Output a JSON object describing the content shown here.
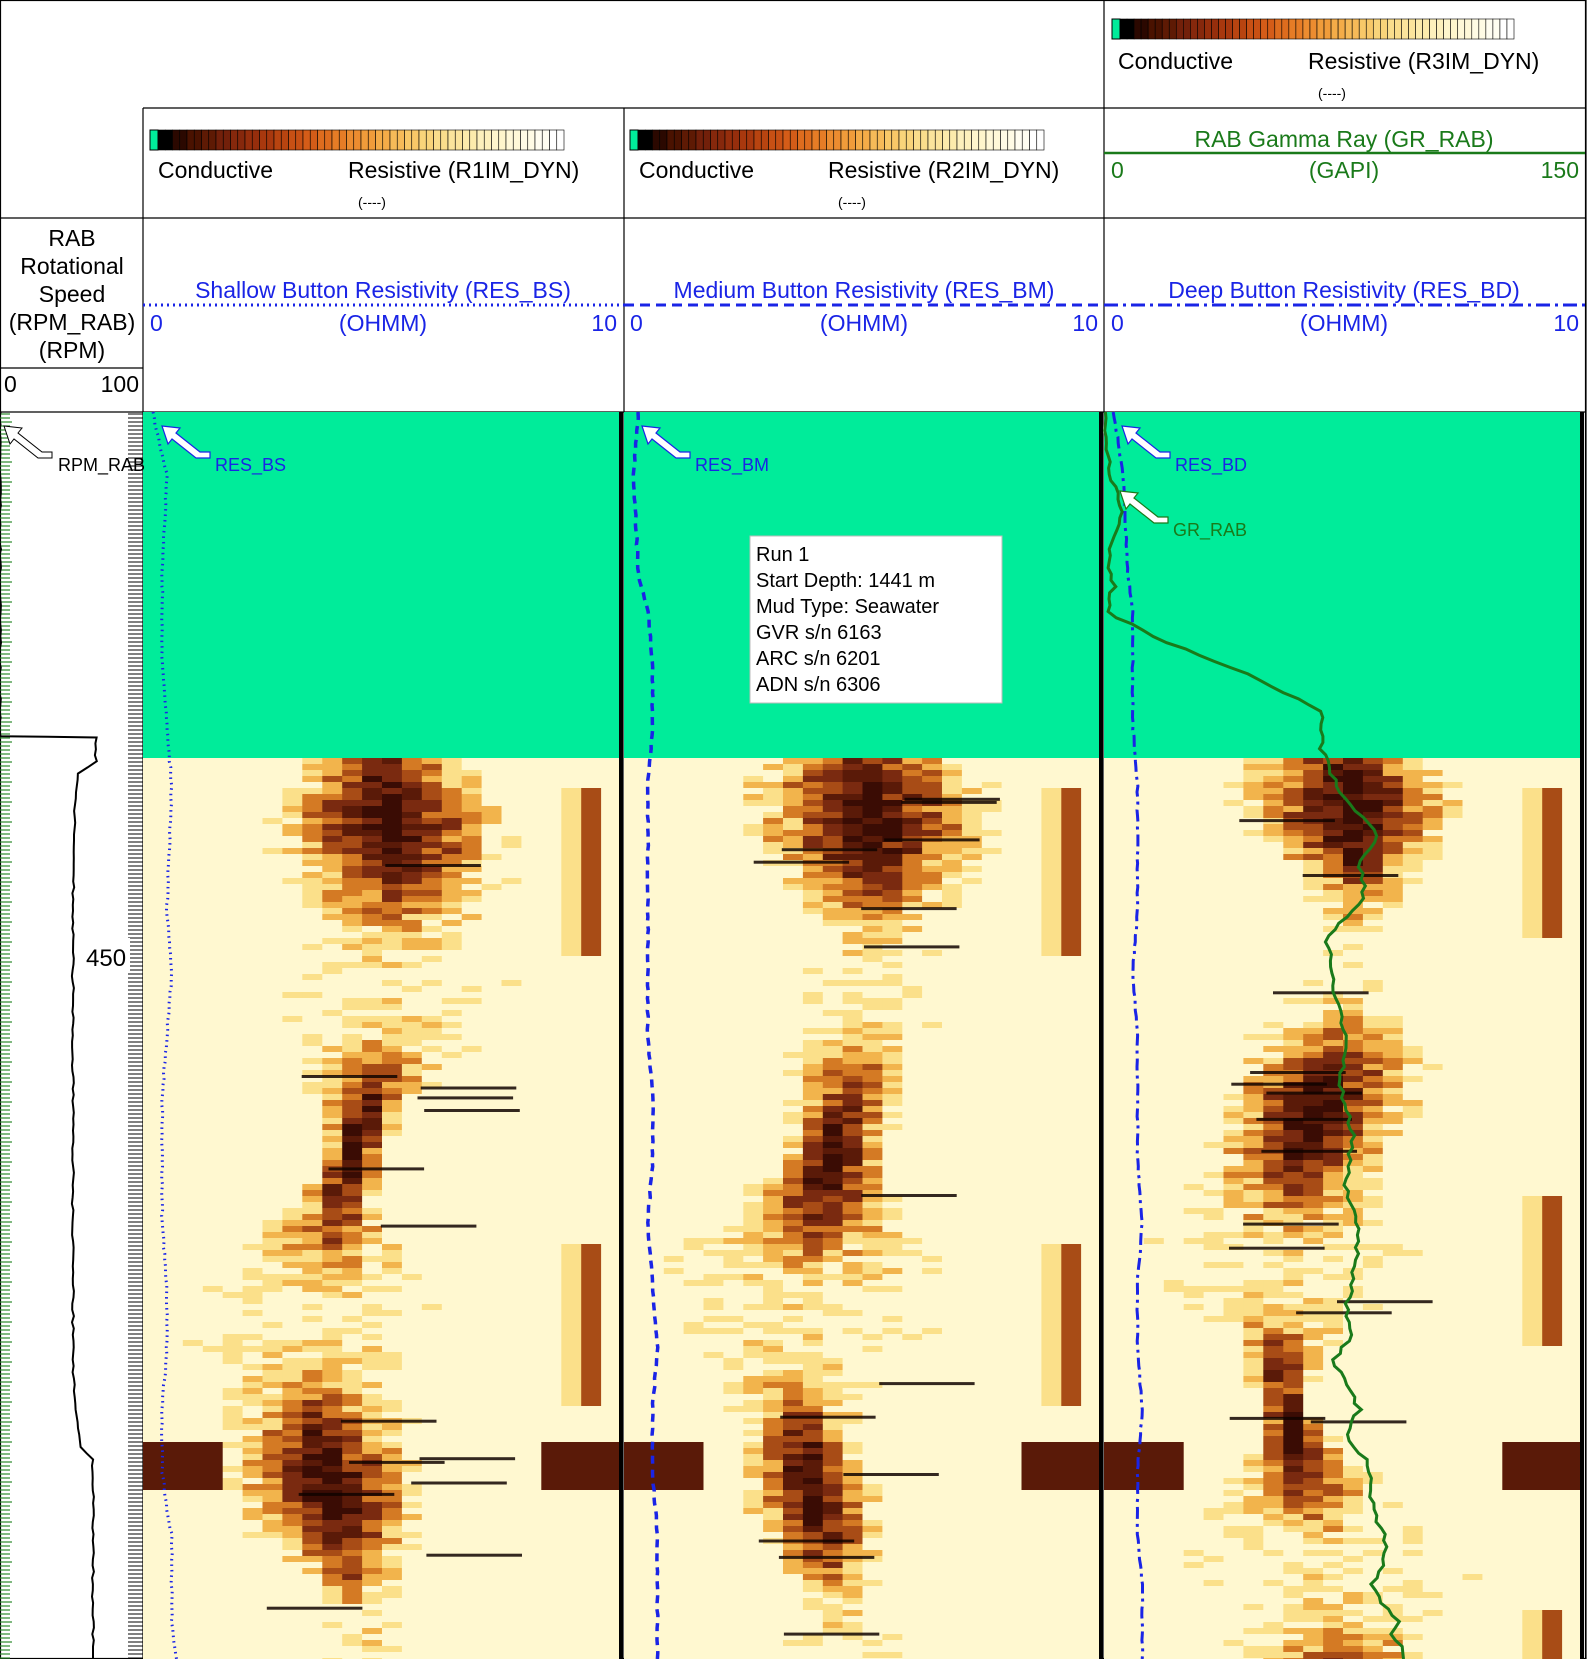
{
  "colors": {
    "blue": "#1a24e6",
    "green": "#1a7a1a",
    "no_data": "#00ec9a",
    "black": "#000000"
  },
  "header": {
    "track3_top": {
      "left_label": "Conductive",
      "right_label": "Resistive (R3IM_DYN)",
      "units": "(----)"
    },
    "track1": {
      "left_label": "Conductive",
      "right_label": "Resistive (R1IM_DYN)",
      "units": "(----)",
      "curve_title": "Shallow Button Resistivity (RES_BS)",
      "curve_units": "(OHMM)",
      "scale_min": "0",
      "scale_max": "10"
    },
    "track2": {
      "left_label": "Conductive",
      "right_label": "Resistive (R2IM_DYN)",
      "units": "(----)",
      "curve_title": "Medium Button Resistivity (RES_BM)",
      "curve_units": "(OHMM)",
      "scale_min": "0",
      "scale_max": "10"
    },
    "track3": {
      "gr_title": "RAB Gamma Ray (GR_RAB)",
      "gr_units": "(GAPI)",
      "gr_min": "0",
      "gr_max": "150",
      "curve_title": "Deep Button Resistivity (RES_BD)",
      "curve_units": "(OHMM)",
      "scale_min": "0",
      "scale_max": "10"
    },
    "depth_track": {
      "line1": "RAB",
      "line2": "Rotational",
      "line3": "Speed",
      "line4": "(RPM_RAB)",
      "line5": "(RPM)",
      "scale_min": "0",
      "scale_max": "100"
    }
  },
  "curve_labels": {
    "rpm": "RPM_RAB",
    "res_bs": "RES_BS",
    "res_bm": "RES_BM",
    "res_bd": "RES_BD",
    "gr": "GR_RAB"
  },
  "depth_label": "450",
  "annotation": {
    "line1": "Run 1",
    "line2": "Start Depth: 1441 m",
    "line3": "Mud Type: Seawater",
    "line4": "GVR s/n 6163",
    "line5": "ARC s/n 6201",
    "line6": "ADN s/n 6306"
  },
  "chart_data": {
    "type": "line",
    "tracks": [
      {
        "name": "RES_BS",
        "x_range": [
          0,
          10
        ],
        "units": "OHMM"
      },
      {
        "name": "RES_BM",
        "x_range": [
          0,
          10
        ],
        "units": "OHMM"
      },
      {
        "name": "RES_BD",
        "x_range": [
          0,
          10
        ],
        "units": "OHMM"
      },
      {
        "name": "GR_RAB",
        "x_range": [
          0,
          150
        ],
        "units": "GAPI"
      },
      {
        "name": "RPM_RAB",
        "x_range": [
          0,
          100
        ],
        "units": "RPM"
      }
    ],
    "series": [
      {
        "name": "GR_RAB",
        "x": [
          0,
          0,
          2,
          6,
          1,
          3,
          1,
          15,
          45,
          68,
          68,
          73,
          86,
          80,
          82,
          70,
          72,
          76,
          74,
          78,
          76,
          80,
          78,
          76,
          78,
          72,
          76,
          80,
          76,
          82,
          84,
          84,
          88,
          88,
          84,
          86,
          92,
          90,
          94,
          94
        ],
        "depth_frac": [
          0.0,
          0.02,
          0.05,
          0.08,
          0.11,
          0.14,
          0.16,
          0.18,
          0.21,
          0.24,
          0.27,
          0.3,
          0.34,
          0.36,
          0.39,
          0.42,
          0.46,
          0.5,
          0.54,
          0.58,
          0.62,
          0.66,
          0.7,
          0.72,
          0.74,
          0.76,
          0.78,
          0.8,
          0.82,
          0.84,
          0.86,
          0.88,
          0.9,
          0.92,
          0.94,
          0.95,
          0.97,
          0.98,
          0.99,
          1.0
        ]
      },
      {
        "name": "RES_BS",
        "x": [
          0.2,
          0.5,
          0.4,
          0.4,
          0.5,
          0.6,
          0.5,
          0.6,
          0.5,
          0.4,
          0.4,
          0.4,
          0.5,
          0.5,
          0.4,
          0.4,
          0.5,
          0.6,
          0.6,
          0.6,
          0.7
        ],
        "depth_frac": [
          0.0,
          0.05,
          0.13,
          0.2,
          0.25,
          0.3,
          0.4,
          0.45,
          0.5,
          0.55,
          0.6,
          0.65,
          0.7,
          0.75,
          0.8,
          0.85,
          0.88,
          0.9,
          0.94,
          0.97,
          1.0
        ]
      },
      {
        "name": "RES_BM",
        "x": [
          0.3,
          0.2,
          0.3,
          0.5,
          0.6,
          0.6,
          0.5,
          0.5,
          0.5,
          0.5,
          0.6,
          0.6,
          0.5,
          0.6,
          0.7,
          0.6,
          0.6,
          0.7,
          0.7,
          0.7,
          0.7
        ],
        "depth_frac": [
          0.0,
          0.05,
          0.13,
          0.16,
          0.2,
          0.25,
          0.3,
          0.4,
          0.45,
          0.5,
          0.55,
          0.6,
          0.65,
          0.7,
          0.75,
          0.8,
          0.85,
          0.9,
          0.94,
          0.97,
          1.0
        ]
      },
      {
        "name": "RES_BD",
        "x": [
          0.2,
          0.4,
          0.5,
          0.6,
          0.6,
          0.6,
          0.7,
          0.7,
          0.6,
          0.7,
          0.7,
          0.7,
          0.8,
          0.7,
          0.7,
          0.8,
          0.7,
          0.7,
          0.8,
          0.8,
          0.8
        ],
        "depth_frac": [
          0.0,
          0.05,
          0.13,
          0.16,
          0.2,
          0.25,
          0.3,
          0.4,
          0.45,
          0.5,
          0.55,
          0.6,
          0.65,
          0.7,
          0.75,
          0.8,
          0.85,
          0.9,
          0.94,
          0.97,
          1.0
        ]
      },
      {
        "name": "RPM_RAB",
        "x": [
          0,
          0,
          0,
          0,
          0,
          0,
          0,
          67,
          67,
          55,
          52,
          51,
          51,
          51,
          51,
          51,
          51,
          51,
          53,
          56,
          65,
          65,
          65,
          65
        ],
        "depth_frac": [
          0.0,
          0.05,
          0.1,
          0.15,
          0.2,
          0.25,
          0.26,
          0.261,
          0.28,
          0.29,
          0.32,
          0.4,
          0.5,
          0.6,
          0.65,
          0.7,
          0.75,
          0.76,
          0.8,
          0.83,
          0.84,
          0.9,
          0.95,
          1.0
        ]
      }
    ]
  }
}
